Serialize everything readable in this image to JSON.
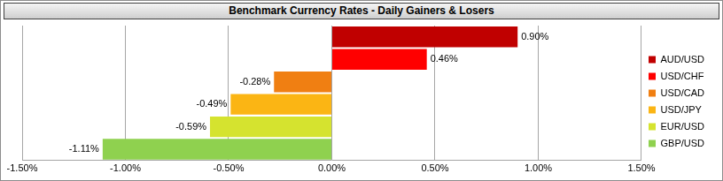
{
  "chart_data": {
    "type": "bar",
    "orientation": "horizontal",
    "title": "Benchmark Currency Rates - Daily Gainers & Losers",
    "categories": [
      "AUD/USD",
      "USD/CHF",
      "USD/CAD",
      "USD/JPY",
      "EUR/USD",
      "GBP/USD"
    ],
    "values": [
      0.9,
      0.46,
      -0.28,
      -0.49,
      -0.59,
      -1.11
    ],
    "value_labels": [
      "0.90%",
      "0.46%",
      "-0.28%",
      "-0.49%",
      "-0.59%",
      "-1.11%"
    ],
    "colors": [
      "#c00000",
      "#ff0000",
      "#f07f12",
      "#fbb514",
      "#d5e32f",
      "#8fd14f"
    ],
    "xlim": [
      -1.5,
      1.5
    ],
    "xticks": [
      {
        "value": -1.5,
        "label": "-1.50%"
      },
      {
        "value": -1.0,
        "label": "-1.00%"
      },
      {
        "value": -0.5,
        "label": "-0.50%"
      },
      {
        "value": 0,
        "label": "0.00%"
      },
      {
        "value": 0.5,
        "label": "0.50%"
      },
      {
        "value": 1.0,
        "label": "1.00%"
      },
      {
        "value": 1.5,
        "label": "1.50%"
      }
    ],
    "grid": true,
    "legend": "right",
    "data_labels": true,
    "tick_labels": "x"
  }
}
